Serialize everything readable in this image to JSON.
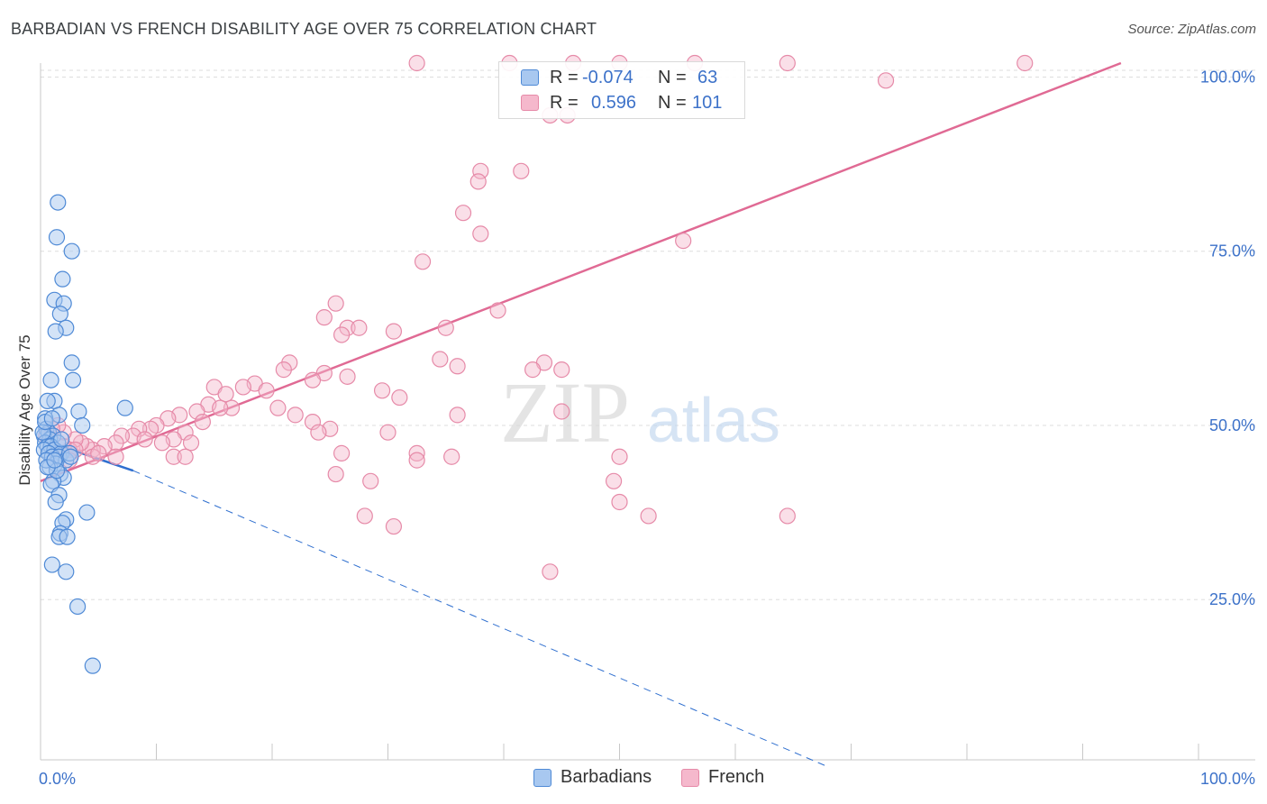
{
  "header": {
    "title": "BARBADIAN VS FRENCH DISABILITY AGE OVER 75 CORRELATION CHART",
    "source": "Source: ZipAtlas.com"
  },
  "watermark": {
    "zip": "ZIP",
    "atlas": "atlas"
  },
  "legend": {
    "barbadians": {
      "r_label": "R =",
      "r_value": "-0.074",
      "n_label": "N =",
      "n_value": "63"
    },
    "french": {
      "r_label": "R =",
      "r_value": "0.596",
      "n_label": "N =",
      "n_value": "101"
    }
  },
  "bottom_legend": {
    "barbadians": "Barbadians",
    "french": "French"
  },
  "colors": {
    "barbadian_fill": "#a8c8f0",
    "barbadian_stroke": "#4f8ad6",
    "barbadian_line": "#2f6fcf",
    "french_fill": "#f5b8cc",
    "french_stroke": "#e68aa8",
    "french_line": "#e06a94",
    "tick_text": "#3d72c9",
    "grid": "#dddddd"
  },
  "chart_data": {
    "type": "scatter",
    "title": "BARBADIAN VS FRENCH DISABILITY AGE OVER 75 CORRELATION CHART",
    "xlabel": "",
    "ylabel": "Disability Age Over 75",
    "xlim": [
      0,
      100
    ],
    "ylim": [
      2,
      102
    ],
    "x_tick_labels": [
      "0.0%",
      "100.0%"
    ],
    "y_ticks": [
      25,
      50,
      75,
      100
    ],
    "y_tick_labels": [
      "25.0%",
      "50.0%",
      "75.0%",
      "100.0%"
    ],
    "series": [
      {
        "name": "Barbadians",
        "r": -0.074,
        "n": 63,
        "trend": {
          "x0": 0,
          "y0": 48.0,
          "x1": 8.0,
          "y1": 43.5,
          "x_dash_end": 68.0,
          "y_dash_end": 1.0
        },
        "points": [
          [
            1.5,
            82
          ],
          [
            1.4,
            77
          ],
          [
            2.7,
            75
          ],
          [
            1.9,
            71
          ],
          [
            1.2,
            68
          ],
          [
            2.0,
            67.5
          ],
          [
            1.7,
            66
          ],
          [
            2.2,
            64
          ],
          [
            1.3,
            63.5
          ],
          [
            2.7,
            59
          ],
          [
            2.8,
            56.5
          ],
          [
            0.9,
            56.5
          ],
          [
            1.2,
            53.5
          ],
          [
            0.6,
            53.5
          ],
          [
            3.3,
            52
          ],
          [
            1.6,
            51.5
          ],
          [
            7.3,
            52.5
          ],
          [
            0.4,
            51
          ],
          [
            3.6,
            50
          ],
          [
            0.5,
            49.5
          ],
          [
            0.7,
            49
          ],
          [
            0.3,
            48.5
          ],
          [
            1.1,
            48.5
          ],
          [
            0.8,
            48
          ],
          [
            0.4,
            47.5
          ],
          [
            1.5,
            47.5
          ],
          [
            0.6,
            47
          ],
          [
            0.9,
            47
          ],
          [
            0.3,
            46.5
          ],
          [
            1.2,
            46.5
          ],
          [
            0.7,
            46
          ],
          [
            1.8,
            46
          ],
          [
            1.0,
            45.5
          ],
          [
            1.6,
            45.5
          ],
          [
            2.2,
            45
          ],
          [
            1.3,
            44.5
          ],
          [
            0.8,
            44
          ],
          [
            1.7,
            43
          ],
          [
            2.0,
            42.5
          ],
          [
            1.1,
            42
          ],
          [
            0.9,
            41.5
          ],
          [
            1.6,
            40
          ],
          [
            1.3,
            39
          ],
          [
            4.0,
            37.5
          ],
          [
            2.2,
            36.5
          ],
          [
            1.9,
            36
          ],
          [
            1.7,
            34.5
          ],
          [
            1.6,
            34
          ],
          [
            2.3,
            34
          ],
          [
            1.0,
            30
          ],
          [
            2.2,
            29
          ],
          [
            3.2,
            24
          ],
          [
            4.5,
            15.5
          ],
          [
            0.5,
            45
          ],
          [
            1.4,
            43.5
          ],
          [
            2.5,
            46
          ],
          [
            0.2,
            49
          ],
          [
            1.8,
            48
          ],
          [
            0.6,
            44
          ],
          [
            1.2,
            45
          ],
          [
            2.6,
            45.5
          ],
          [
            0.4,
            50.5
          ],
          [
            1.0,
            51
          ]
        ]
      },
      {
        "name": "French",
        "r": 0.596,
        "n": 101,
        "trend": {
          "x0": 0,
          "y0": 42.0,
          "x1": 93.3,
          "y1": 102.0
        },
        "points": [
          [
            32.5,
            102
          ],
          [
            40.5,
            102
          ],
          [
            46.0,
            102
          ],
          [
            50.0,
            102
          ],
          [
            56.5,
            102
          ],
          [
            64.5,
            102
          ],
          [
            85.0,
            102
          ],
          [
            73.0,
            99.5
          ],
          [
            45.5,
            94.5
          ],
          [
            44.0,
            94.5
          ],
          [
            38.0,
            86.5
          ],
          [
            41.5,
            86.5
          ],
          [
            37.8,
            85
          ],
          [
            36.5,
            80.5
          ],
          [
            38.0,
            77.5
          ],
          [
            55.5,
            76.5
          ],
          [
            33.0,
            73.5
          ],
          [
            39.5,
            66.5
          ],
          [
            25.5,
            67.5
          ],
          [
            24.5,
            65.5
          ],
          [
            26.5,
            64
          ],
          [
            27.5,
            64
          ],
          [
            30.5,
            63.5
          ],
          [
            26.0,
            63
          ],
          [
            35.0,
            64
          ],
          [
            21.5,
            59
          ],
          [
            34.5,
            59.5
          ],
          [
            36.0,
            58.5
          ],
          [
            43.5,
            59
          ],
          [
            45.0,
            58
          ],
          [
            42.5,
            58
          ],
          [
            24.5,
            57.5
          ],
          [
            21.0,
            58
          ],
          [
            23.5,
            56.5
          ],
          [
            18.5,
            56
          ],
          [
            17.5,
            55.5
          ],
          [
            26.5,
            57
          ],
          [
            29.5,
            55
          ],
          [
            31.0,
            54
          ],
          [
            15.0,
            55.5
          ],
          [
            16.0,
            54.5
          ],
          [
            19.5,
            55
          ],
          [
            20.5,
            52.5
          ],
          [
            22.0,
            51.5
          ],
          [
            23.5,
            50.5
          ],
          [
            14.5,
            53
          ],
          [
            16.5,
            52.5
          ],
          [
            13.5,
            52
          ],
          [
            12.0,
            51.5
          ],
          [
            11.0,
            51
          ],
          [
            10.0,
            50
          ],
          [
            9.5,
            49.5
          ],
          [
            8.5,
            49.5
          ],
          [
            8.0,
            48.5
          ],
          [
            7.0,
            48.5
          ],
          [
            6.5,
            47.5
          ],
          [
            5.5,
            47
          ],
          [
            12.5,
            49
          ],
          [
            11.5,
            48
          ],
          [
            9.0,
            48
          ],
          [
            14.0,
            50.5
          ],
          [
            15.5,
            52.5
          ],
          [
            13.0,
            47.5
          ],
          [
            10.5,
            47.5
          ],
          [
            11.5,
            45.5
          ],
          [
            12.5,
            45.5
          ],
          [
            4.5,
            46.5
          ],
          [
            4.0,
            47
          ],
          [
            3.5,
            47.5
          ],
          [
            3.0,
            48
          ],
          [
            2.5,
            46.5
          ],
          [
            2.0,
            49
          ],
          [
            1.5,
            50
          ],
          [
            1.0,
            49.5
          ],
          [
            0.5,
            48.5
          ],
          [
            2.0,
            47
          ],
          [
            3.0,
            46.5
          ],
          [
            4.5,
            45.5
          ],
          [
            5.0,
            46
          ],
          [
            2.5,
            45
          ],
          [
            1.5,
            45.5
          ],
          [
            6.5,
            45.5
          ],
          [
            25.0,
            49.5
          ],
          [
            24.0,
            49
          ],
          [
            30.0,
            49
          ],
          [
            36.0,
            51.5
          ],
          [
            26.0,
            46
          ],
          [
            35.5,
            45.5
          ],
          [
            45.0,
            52
          ],
          [
            32.5,
            46
          ],
          [
            32.5,
            45
          ],
          [
            25.5,
            43
          ],
          [
            28.5,
            42
          ],
          [
            50.0,
            45.5
          ],
          [
            49.5,
            42
          ],
          [
            50.0,
            39
          ],
          [
            52.5,
            37
          ],
          [
            64.5,
            37
          ],
          [
            28.0,
            37
          ],
          [
            30.5,
            35.5
          ],
          [
            44.0,
            29
          ]
        ]
      }
    ]
  }
}
